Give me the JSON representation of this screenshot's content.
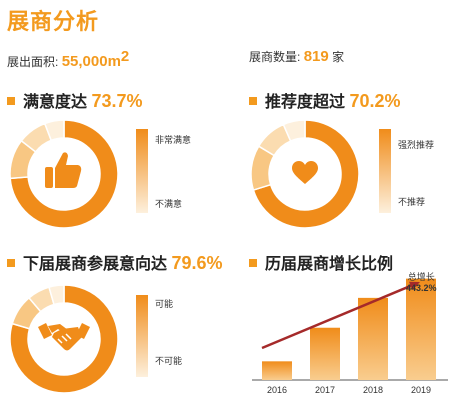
{
  "header": {
    "title": "展商分析",
    "area_label": "展出面积:",
    "area_value": "55,000m",
    "area_sup": "2",
    "count_label": "展商数量:",
    "count_value": "819",
    "count_unit": "家"
  },
  "colors": {
    "accent": "#f39a1e",
    "dark": "#f08c1a",
    "light": "#fde4c2",
    "arrow": "#a52a2a",
    "axis": "#555555"
  },
  "satisfaction": {
    "label": "满意度达",
    "value_text": "73.7%",
    "legend_top": "非常满意",
    "legend_bottom": "不满意",
    "icon": "thumbs-up-icon"
  },
  "recommend": {
    "label": "推荐度超过",
    "value_text": "70.2%",
    "legend_top": "强烈推荐",
    "legend_bottom": "不推荐",
    "icon": "heart-icon"
  },
  "intent": {
    "label": "下届展商参展意向达",
    "value_text": "79.6%",
    "legend_top": "可能",
    "legend_bottom": "不可能",
    "icon": "handshake-icon"
  },
  "growth": {
    "label": "历届展商增长比例",
    "annotation_label": "总增长",
    "annotation_value": "443.2%"
  },
  "chart_data": [
    {
      "type": "pie",
      "variant": "donut",
      "title": "满意度达 73.7%",
      "value": 73.7,
      "legend": [
        "非常满意",
        "不满意"
      ]
    },
    {
      "type": "pie",
      "variant": "donut",
      "title": "推荐度超过 70.2%",
      "value": 70.2,
      "legend": [
        "强烈推荐",
        "不推荐"
      ]
    },
    {
      "type": "pie",
      "variant": "donut",
      "title": "下届展商参展意向达 79.6%",
      "value": 79.6,
      "legend": [
        "可能",
        "不可能"
      ]
    },
    {
      "type": "bar",
      "title": "历届展商增长比例",
      "categories": [
        "2016",
        "2017",
        "2018",
        "2019"
      ],
      "values": [
        100,
        280,
        440,
        543
      ],
      "ylim": [
        0,
        600
      ],
      "grid": false,
      "annotations": [
        "总增长 443.2%"
      ]
    }
  ]
}
